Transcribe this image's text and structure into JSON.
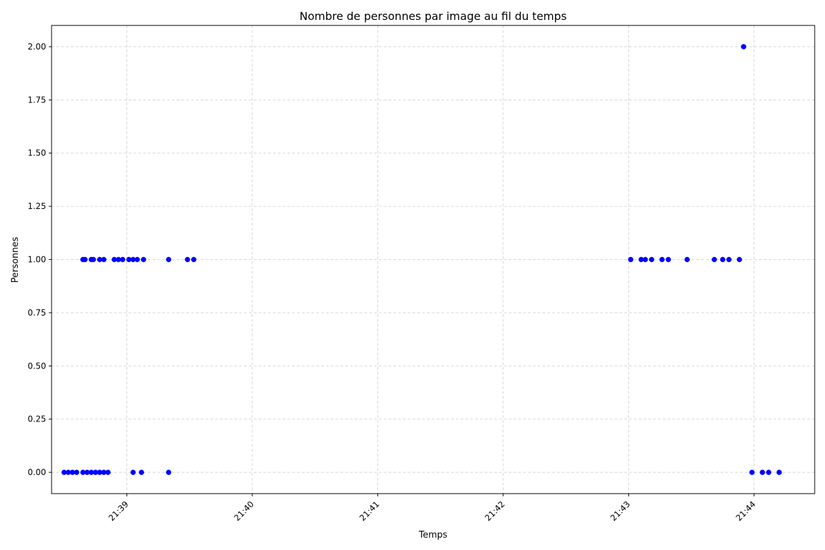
{
  "chart_data": {
    "type": "scatter",
    "title": "Nombre de personnes par image au fil du temps",
    "xlabel": "Temps",
    "ylabel": "Personnes",
    "x_ticks": [
      "21:39",
      "21:40",
      "21:41",
      "21:42",
      "21:43",
      "21:44"
    ],
    "y_ticks": [
      "0.00",
      "0.25",
      "0.50",
      "0.75",
      "1.00",
      "1.25",
      "1.50",
      "1.75",
      "2.00"
    ],
    "xlim": [
      "21:38:24",
      "21:44:29"
    ],
    "ylim": [
      -0.1,
      2.1
    ],
    "grid": true,
    "marker_color": "#0000ff",
    "points": [
      {
        "t": "21:38:30",
        "y": 0
      },
      {
        "t": "21:38:32",
        "y": 0
      },
      {
        "t": "21:38:34",
        "y": 0
      },
      {
        "t": "21:38:36",
        "y": 0
      },
      {
        "t": "21:38:39",
        "y": 0
      },
      {
        "t": "21:38:41",
        "y": 0
      },
      {
        "t": "21:38:43",
        "y": 0
      },
      {
        "t": "21:38:45",
        "y": 0
      },
      {
        "t": "21:38:47",
        "y": 0
      },
      {
        "t": "21:38:49",
        "y": 0
      },
      {
        "t": "21:38:51",
        "y": 0
      },
      {
        "t": "21:39:03",
        "y": 0
      },
      {
        "t": "21:39:07",
        "y": 0
      },
      {
        "t": "21:39:20",
        "y": 0
      },
      {
        "t": "21:38:39",
        "y": 1
      },
      {
        "t": "21:38:40",
        "y": 1
      },
      {
        "t": "21:38:43",
        "y": 1
      },
      {
        "t": "21:38:44",
        "y": 1
      },
      {
        "t": "21:38:47",
        "y": 1
      },
      {
        "t": "21:38:49",
        "y": 1
      },
      {
        "t": "21:38:54",
        "y": 1
      },
      {
        "t": "21:38:56",
        "y": 1
      },
      {
        "t": "21:38:58",
        "y": 1
      },
      {
        "t": "21:39:01",
        "y": 1
      },
      {
        "t": "21:39:03",
        "y": 1
      },
      {
        "t": "21:39:05",
        "y": 1
      },
      {
        "t": "21:39:08",
        "y": 1
      },
      {
        "t": "21:39:20",
        "y": 1
      },
      {
        "t": "21:39:29",
        "y": 1
      },
      {
        "t": "21:39:32",
        "y": 1
      },
      {
        "t": "21:43:01",
        "y": 1
      },
      {
        "t": "21:43:06",
        "y": 1
      },
      {
        "t": "21:43:08",
        "y": 1
      },
      {
        "t": "21:43:11",
        "y": 1
      },
      {
        "t": "21:43:16",
        "y": 1
      },
      {
        "t": "21:43:19",
        "y": 1
      },
      {
        "t": "21:43:28",
        "y": 1
      },
      {
        "t": "21:43:41",
        "y": 1
      },
      {
        "t": "21:43:45",
        "y": 1
      },
      {
        "t": "21:43:48",
        "y": 1
      },
      {
        "t": "21:43:53",
        "y": 1
      },
      {
        "t": "21:43:55",
        "y": 2
      },
      {
        "t": "21:43:59",
        "y": 0
      },
      {
        "t": "21:44:04",
        "y": 0
      },
      {
        "t": "21:44:07",
        "y": 0
      },
      {
        "t": "21:44:12",
        "y": 0
      }
    ]
  }
}
